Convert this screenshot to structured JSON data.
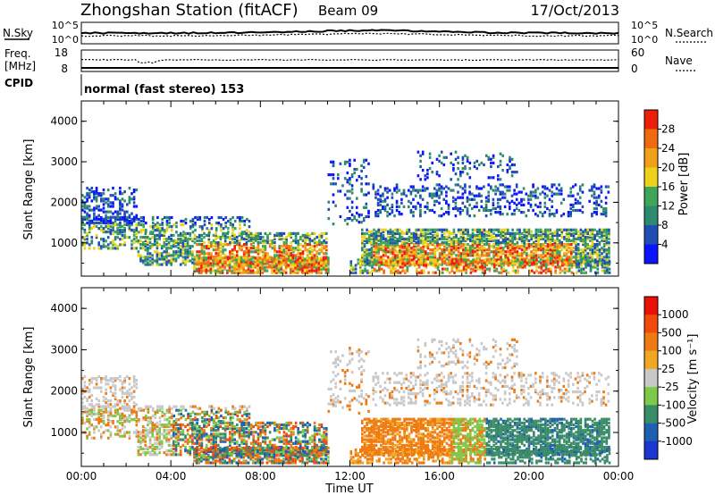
{
  "header": {
    "station": "Zhongshan Station (fitACF)",
    "beam": "Beam 09",
    "date": "17/Oct/2013"
  },
  "summary_panel": {
    "nsky_label": "N.Sky",
    "nsearch_label": "N.Search",
    "noise_ticks_left": [
      "10^5",
      "10^0"
    ],
    "noise_ticks_right": [
      "10^5",
      "10^0"
    ],
    "freq_label_1": "Freq.",
    "freq_label_2": "[MHz]",
    "freq_ticks": [
      "18",
      "8"
    ],
    "nave_label": "Nave",
    "nave_ticks": [
      "60",
      "0"
    ],
    "cpid_label": "CPID",
    "cpid_value": "normal (fast stereo) 153"
  },
  "chart_data": [
    {
      "type": "heatmap",
      "name": "power",
      "ylabel": "Slant Range [km]",
      "ylim": [
        180,
        4500
      ],
      "y_ticks": [
        "1000",
        "2000",
        "3000",
        "4000"
      ],
      "colorbar_label": "Power [dB]",
      "colorbar_ticks": [
        "4",
        "8",
        "12",
        "16",
        "20",
        "24",
        "28"
      ],
      "colorbar_colors": [
        "#0a14ff",
        "#1f4fb4",
        "#2e8a6e",
        "#3fa55b",
        "#eed21a",
        "#f0a11c",
        "#f06b10",
        "#ec1f0a"
      ]
    },
    {
      "type": "heatmap",
      "name": "velocity",
      "ylabel": "Slant Range [km]",
      "ylim": [
        180,
        4500
      ],
      "y_ticks": [
        "1000",
        "2000",
        "3000",
        "4000"
      ],
      "colorbar_label": "Velocity [m s⁻¹]",
      "colorbar_ticks": [
        "1000",
        "500",
        "100",
        "25",
        "-25",
        "-100",
        "-500",
        "-1000"
      ],
      "colorbar_colors": [
        "#1d36d1",
        "#1f5fb0",
        "#3a8c69",
        "#7ec94a",
        "#c8c8c8",
        "#f0a822",
        "#f07a12",
        "#f04a0d",
        "#ea1009"
      ],
      "xlabel": "Time UT",
      "x_ticks": [
        "00:00",
        "04:00",
        "08:00",
        "12:00",
        "16:00",
        "20:00",
        "00:00"
      ],
      "xlim": [
        0,
        24
      ]
    }
  ]
}
